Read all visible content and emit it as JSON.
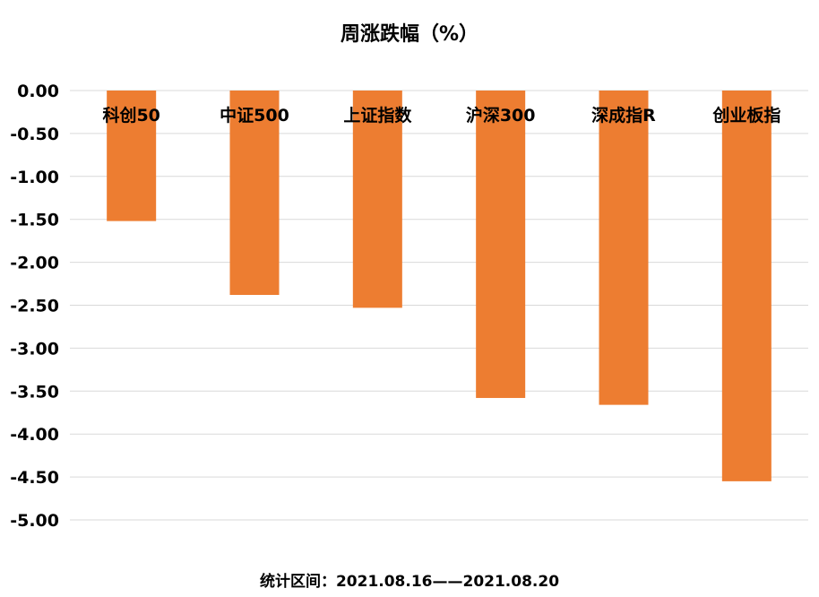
{
  "chart_data": {
    "type": "bar",
    "title": "周涨跌幅（%）",
    "categories": [
      "科创50",
      "中证500",
      "上证指数",
      "沪深300",
      "深成指R",
      "创业板指"
    ],
    "values": [
      -1.52,
      -2.38,
      -2.53,
      -3.58,
      -3.66,
      -4.55
    ],
    "ylim": [
      -5.0,
      0.0
    ],
    "yticks": [
      "0.00",
      "-0.50",
      "-1.00",
      "-1.50",
      "-2.00",
      "-2.50",
      "-3.00",
      "-3.50",
      "-4.00",
      "-4.50",
      "-5.00"
    ],
    "grid": true,
    "bar_color": "#ED7D31",
    "grid_color": "#D9D9D9"
  },
  "footnote": "统计区间：2021.08.16——2021.08.20"
}
